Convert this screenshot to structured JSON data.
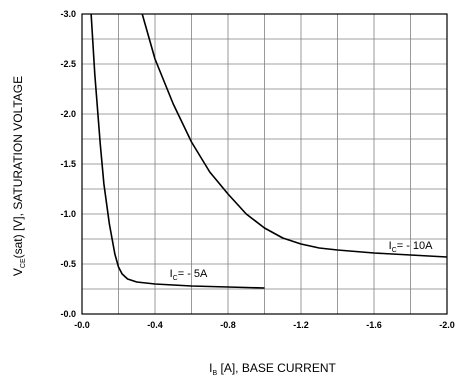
{
  "chart_data": {
    "type": "line",
    "x_axis": {
      "label_main": "I",
      "label_sub": "B",
      "label_rest": " [A], BASE CURRENT",
      "ticks": [
        0.0,
        -0.4,
        -0.8,
        -1.2,
        -1.6,
        -2.0
      ],
      "tick_labels": [
        "-0.0",
        "-0.4",
        "-0.8",
        "-1.2",
        "-1.6",
        "-2.0"
      ],
      "range": [
        0.0,
        -2.0
      ],
      "minor_step": -0.2
    },
    "y_axis": {
      "label_main": "V",
      "label_sub": "CE",
      "label_rest": "(sat) [V], SATURATION VOLTAGE",
      "ticks": [
        0.0,
        -0.5,
        -1.0,
        -1.5,
        -2.0,
        -2.5,
        -3.0
      ],
      "tick_labels": [
        "-0.0",
        "-0.5",
        "-1.0",
        "-1.5",
        "-2.0",
        "-2.5",
        "-3.0"
      ],
      "range": [
        0.0,
        -3.0
      ],
      "minor_step": -0.25
    },
    "grid": true,
    "series": [
      {
        "name_main": "I",
        "name_sub": "C",
        "name_rest": "= - 5A",
        "x": [
          -0.05,
          -0.07,
          -0.1,
          -0.12,
          -0.15,
          -0.18,
          -0.2,
          -0.22,
          -0.25,
          -0.3,
          -0.4,
          -0.5,
          -0.6,
          -0.8,
          -1.0
        ],
        "y": [
          -3.0,
          -2.4,
          -1.7,
          -1.3,
          -0.9,
          -0.6,
          -0.47,
          -0.4,
          -0.35,
          -0.32,
          -0.3,
          -0.29,
          -0.28,
          -0.27,
          -0.26
        ]
      },
      {
        "name_main": "I",
        "name_sub": "C",
        "name_rest": "= - 10A",
        "x": [
          -0.33,
          -0.4,
          -0.5,
          -0.6,
          -0.7,
          -0.8,
          -0.9,
          -1.0,
          -1.1,
          -1.2,
          -1.3,
          -1.4,
          -1.6,
          -1.8,
          -2.0
        ],
        "y": [
          -3.0,
          -2.55,
          -2.1,
          -1.72,
          -1.42,
          -1.2,
          -1.0,
          -0.86,
          -0.76,
          -0.7,
          -0.66,
          -0.64,
          -0.61,
          -0.59,
          -0.57
        ]
      }
    ]
  }
}
